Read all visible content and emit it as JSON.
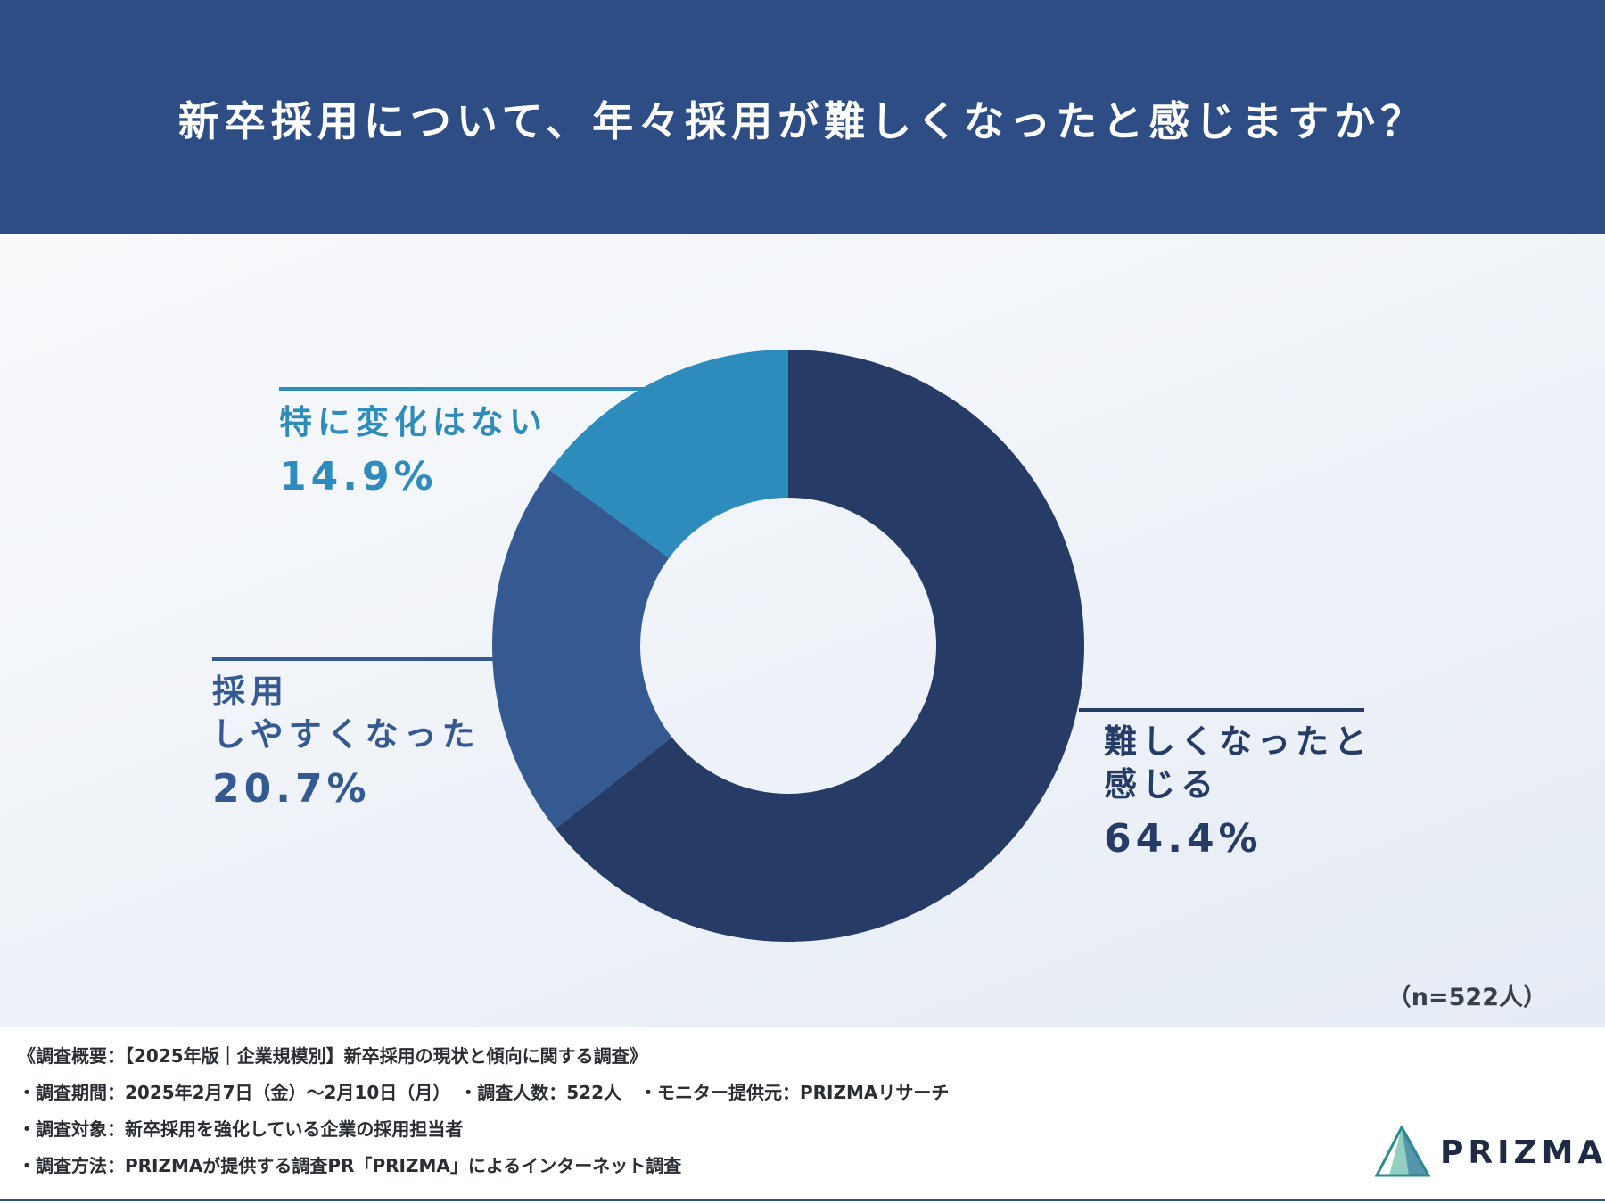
{
  "header": {
    "title": "新卒採用について、年々採用が難しくなったと感じますか？"
  },
  "colors": {
    "header_bg": "#2e4d84",
    "dark_navy": "#263b66",
    "mid_blue": "#355991",
    "light_blue": "#2e8cbc"
  },
  "chart_data": {
    "type": "pie",
    "donut": true,
    "title": "新卒採用について、年々採用が難しくなったと感じますか？",
    "slices": [
      {
        "label": "難しくなったと感じる",
        "value": 64.4,
        "display": "64.4%",
        "color": "#263b66",
        "label_lines": [
          "難しくなったと",
          "感じる"
        ]
      },
      {
        "label": "採用しやすくなった",
        "value": 20.7,
        "display": "20.7%",
        "color": "#355991",
        "label_lines": [
          "採用",
          "しやすくなった"
        ]
      },
      {
        "label": "特に変化はない",
        "value": 14.9,
        "display": "14.9%",
        "color": "#2e8cbc",
        "label_lines": [
          "特に変化はない"
        ]
      }
    ],
    "sample_size": "（n=522人）"
  },
  "footer": {
    "lines": [
      "《調査概要：【2025年版｜企業規模別】新卒採用の現状と傾向に関する調査》",
      "・調査期間：2025年2月7日（金）～2月10日（月）　・調査人数：522人　・モニター提供元：PRIZMAリサーチ",
      "・調査対象：新卒採用を強化している企業の採用担当者",
      "・調査方法：PRIZMAが提供する調査PR「PRIZMA」によるインターネット調査"
    ]
  },
  "logo": {
    "text": "PRIZMA"
  }
}
